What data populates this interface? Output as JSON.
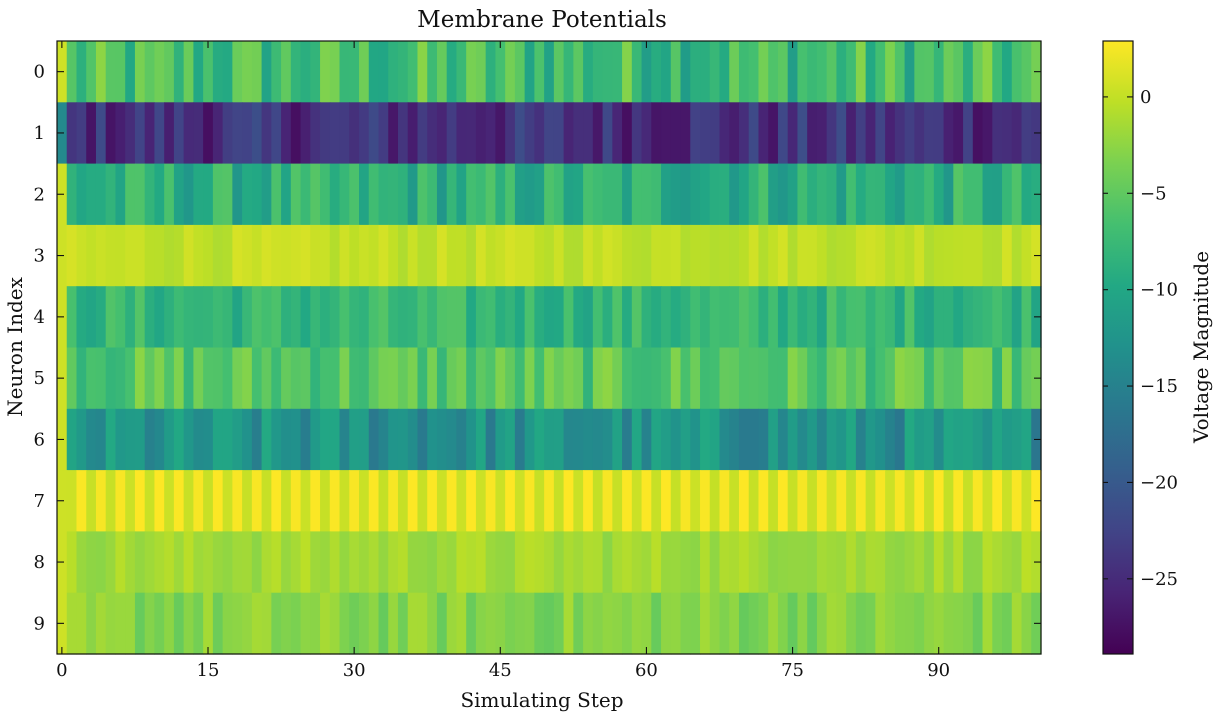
{
  "chart_data": {
    "type": "heatmap",
    "title": "Membrane Potentials",
    "xlabel": "Simulating Step",
    "ylabel": "Neuron Index",
    "colorbar_label": "Voltage Magnitude",
    "colormap": "viridis",
    "n_steps": 101,
    "x_ticks": [
      0,
      15,
      30,
      45,
      60,
      75,
      90
    ],
    "y_ticks": [
      0,
      1,
      2,
      3,
      4,
      5,
      6,
      7,
      8,
      9
    ],
    "colorbar_ticks": [
      0,
      -5,
      -10,
      -15,
      -20,
      -25
    ],
    "color_range": [
      -28.9,
      2.9
    ],
    "rows": [
      {
        "neuron": 0,
        "mean": -7.0,
        "spread": 4.5
      },
      {
        "neuron": 1,
        "mean": -24.5,
        "spread": 3.2
      },
      {
        "neuron": 2,
        "mean": -9.0,
        "spread": 3.5
      },
      {
        "neuron": 3,
        "mean": 0.0,
        "spread": 1.0
      },
      {
        "neuron": 4,
        "mean": -8.0,
        "spread": 2.5
      },
      {
        "neuron": 5,
        "mean": -5.5,
        "spread": 3.0
      },
      {
        "neuron": 6,
        "mean": -13.0,
        "spread": 3.5
      },
      {
        "neuron": 7,
        "mean": 1.5,
        "spread": 1.5,
        "alternating": true
      },
      {
        "neuron": 8,
        "mean": -1.5,
        "spread": 1.2
      },
      {
        "neuron": 9,
        "mean": -3.0,
        "spread": 1.8
      }
    ]
  }
}
